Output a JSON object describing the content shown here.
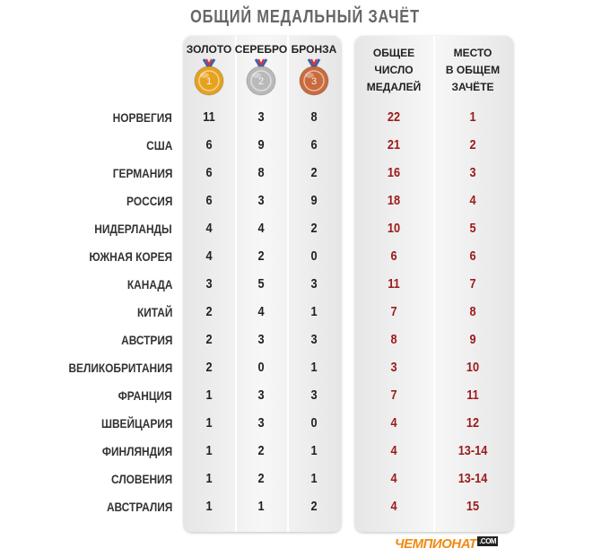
{
  "title": "ОБЩИЙ МЕДАЛЬНЫЙ ЗАЧЁТ",
  "logo": {
    "text": "ЧЕМПИОНАТ",
    "suffix": ".COM"
  },
  "colors": {
    "gold": "#e6a21f",
    "silver": "#b9b9b9",
    "bronze": "#c96b3d",
    "total_text": "#9b1b1b",
    "text": "#222222"
  },
  "chart_data": {
    "type": "table",
    "title": "ОБЩИЙ МЕДАЛЬНЫЙ ЗАЧЁТ",
    "columns": [
      {
        "key": "gold",
        "label": [
          "ЗОЛОТО"
        ],
        "medal_number": "1"
      },
      {
        "key": "silver",
        "label": [
          "СЕРЕБРО"
        ],
        "medal_number": "2"
      },
      {
        "key": "bronze",
        "label": [
          "БРОНЗА"
        ],
        "medal_number": "3"
      },
      {
        "key": "total",
        "label": [
          "ОБЩЕЕ",
          "ЧИСЛО",
          "МЕДАЛЕЙ"
        ]
      },
      {
        "key": "place",
        "label": [
          "МЕСТО",
          "В ОБЩЕМ",
          "ЗАЧЁТЕ"
        ]
      }
    ],
    "rows": [
      {
        "country": "НОРВЕГИЯ",
        "gold": 11,
        "silver": 3,
        "bronze": 8,
        "total": 22,
        "place": "1"
      },
      {
        "country": "США",
        "gold": 6,
        "silver": 9,
        "bronze": 6,
        "total": 21,
        "place": "2"
      },
      {
        "country": "ГЕРМАНИЯ",
        "gold": 6,
        "silver": 8,
        "bronze": 2,
        "total": 16,
        "place": "3"
      },
      {
        "country": "РОССИЯ",
        "gold": 6,
        "silver": 3,
        "bronze": 9,
        "total": 18,
        "place": "4"
      },
      {
        "country": "НИДЕРЛАНДЫ",
        "gold": 4,
        "silver": 4,
        "bronze": 2,
        "total": 10,
        "place": "5"
      },
      {
        "country": "ЮЖНАЯ КОРЕЯ",
        "gold": 4,
        "silver": 2,
        "bronze": 0,
        "total": 6,
        "place": "6"
      },
      {
        "country": "КАНАДА",
        "gold": 3,
        "silver": 5,
        "bronze": 3,
        "total": 11,
        "place": "7"
      },
      {
        "country": "КИТАЙ",
        "gold": 2,
        "silver": 4,
        "bronze": 1,
        "total": 7,
        "place": "8"
      },
      {
        "country": "АВСТРИЯ",
        "gold": 2,
        "silver": 3,
        "bronze": 3,
        "total": 8,
        "place": "9"
      },
      {
        "country": "ВЕЛИКОБРИТАНИЯ",
        "gold": 2,
        "silver": 0,
        "bronze": 1,
        "total": 3,
        "place": "10"
      },
      {
        "country": "ФРАНЦИЯ",
        "gold": 1,
        "silver": 3,
        "bronze": 3,
        "total": 7,
        "place": "11"
      },
      {
        "country": "ШВЕЙЦАРИЯ",
        "gold": 1,
        "silver": 3,
        "bronze": 0,
        "total": 4,
        "place": "12"
      },
      {
        "country": "ФИНЛЯНДИЯ",
        "gold": 1,
        "silver": 2,
        "bronze": 1,
        "total": 4,
        "place": "13-14"
      },
      {
        "country": "СЛОВЕНИЯ",
        "gold": 1,
        "silver": 2,
        "bronze": 1,
        "total": 4,
        "place": "13-14"
      },
      {
        "country": "АВСТРАЛИЯ",
        "gold": 1,
        "silver": 1,
        "bronze": 2,
        "total": 4,
        "place": "15"
      }
    ]
  }
}
